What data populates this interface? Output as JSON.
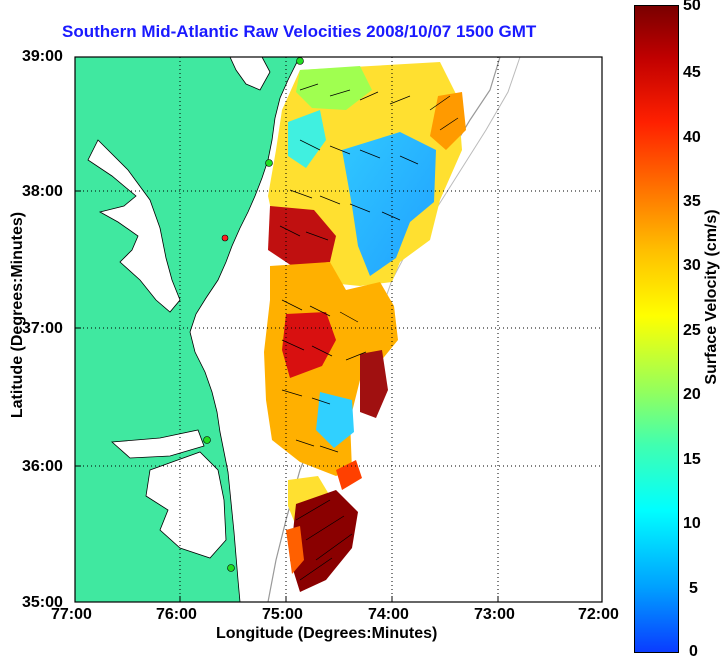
{
  "title": "Southern Mid-Atlantic Raw Velocities 2008/10/07 1500 GMT",
  "x_axis": {
    "label": "Longitude (Degrees:Minutes)",
    "ticks": [
      "77:00",
      "76:00",
      "75:00",
      "74:00",
      "73:00",
      "72:00"
    ]
  },
  "y_axis": {
    "label": "Latitude (Degrees:Minutes)",
    "ticks": [
      "39:00",
      "38:00",
      "37:00",
      "36:00",
      "35:00"
    ]
  },
  "colorbar": {
    "label": "Surface Velocity (cm/s)",
    "ticks": [
      "50",
      "45",
      "40",
      "35",
      "30",
      "25",
      "20",
      "15",
      "10",
      "5",
      "0"
    ],
    "range": [
      0,
      50
    ]
  },
  "colors": {
    "land": "#40e8a0",
    "title": "#1a1aff",
    "station_marker": "#22dd22",
    "alert_marker": "#ff2222"
  },
  "map_extent": {
    "lon_west": -77,
    "lon_east": -72,
    "lat_south": 35,
    "lat_north": 39
  }
}
